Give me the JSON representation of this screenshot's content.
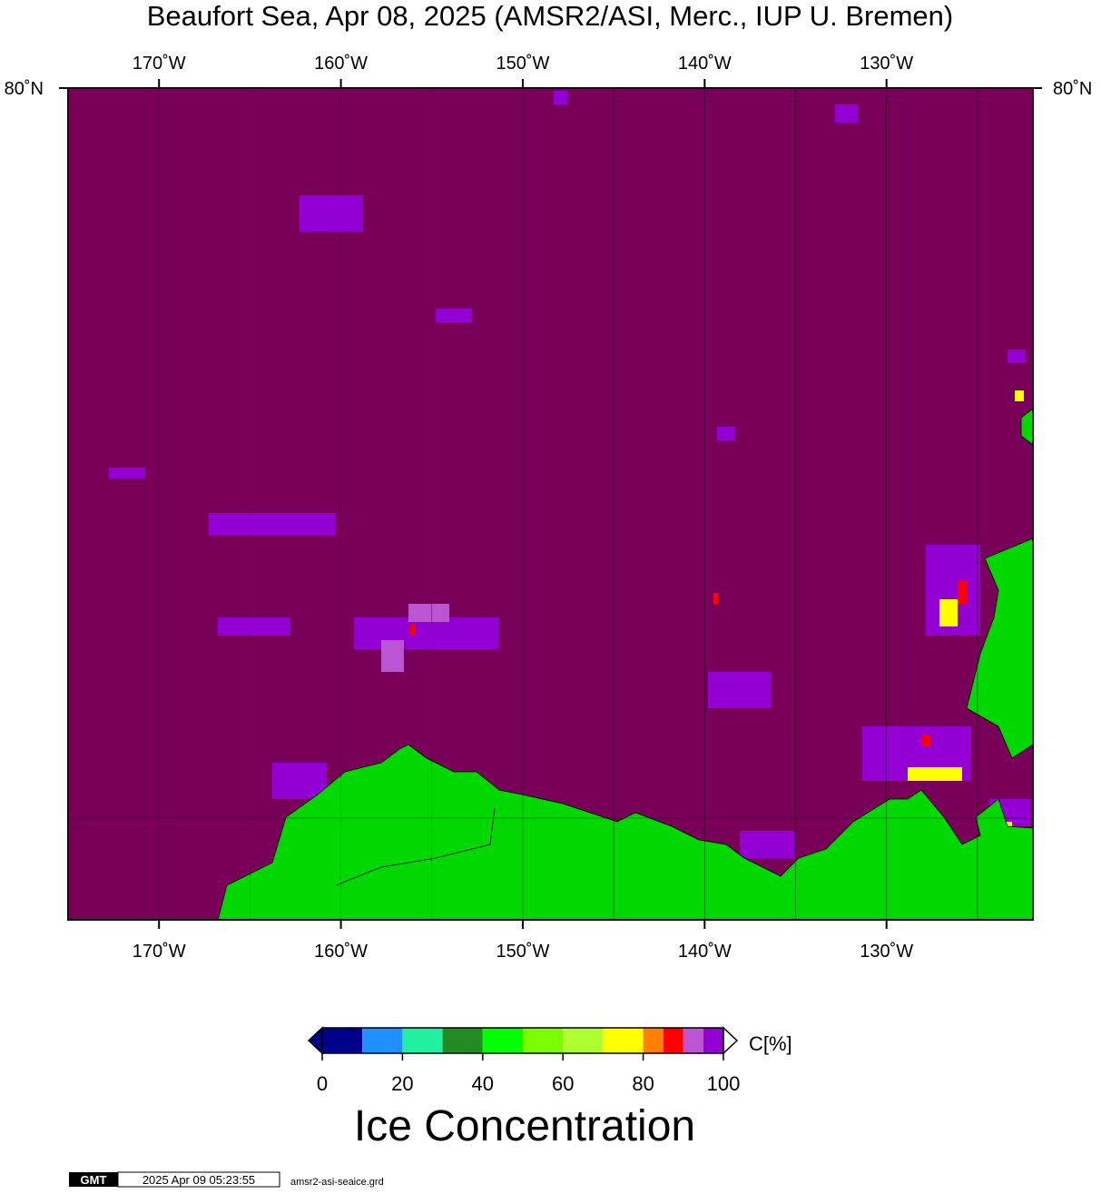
{
  "map": {
    "title": "Beaufort Sea, Apr 08, 2025 (AMSR2/ASI, Merc., IUP U. Bremen)",
    "lonlim": [
      -175,
      -121.95
    ],
    "lon_ticks": [
      {
        "value": -170,
        "label": "170˚W"
      },
      {
        "value": -160,
        "label": "160˚W"
      },
      {
        "value": -150,
        "label": "150˚W"
      },
      {
        "value": -140,
        "label": "140˚W"
      },
      {
        "value": -130,
        "label": "130˚W"
      }
    ],
    "lon_gridlines": [
      -170,
      -165,
      -160,
      -155,
      -150,
      -145,
      -140,
      -135,
      -130,
      -125
    ],
    "lat_label": "80˚N",
    "ocean_color": "#780059",
    "land_color": "#00d800"
  },
  "colorbar": {
    "title": "Ice Concentration",
    "unit": "C[%]",
    "bins": [
      0,
      10,
      20,
      30,
      40,
      50,
      60,
      70,
      80,
      85,
      90,
      95,
      100
    ],
    "colors": [
      "#00008b",
      "#1e90ff",
      "#20f0a0",
      "#228b22",
      "#00ff00",
      "#7cfc00",
      "#adff2f",
      "#ffff00",
      "#ff8000",
      "#ff0000",
      "#ba55d3",
      "#9400d3"
    ],
    "ticks": [
      0,
      20,
      40,
      60,
      80,
      100
    ]
  },
  "footer": {
    "logo": "GMT",
    "timestamp": "2025 Apr 09 05:23:55",
    "file": "amsr2-asi-seaice.grd"
  }
}
